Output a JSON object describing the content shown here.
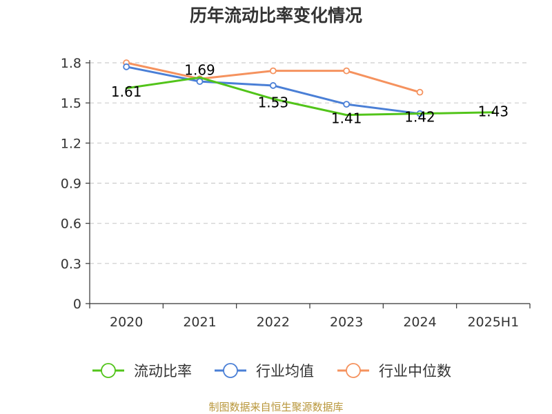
{
  "chart_data": {
    "type": "line",
    "title": "历年流动比率变化情况",
    "categories": [
      "2020",
      "2021",
      "2022",
      "2023",
      "2024",
      "2025H1"
    ],
    "ylim": [
      0,
      1.8
    ],
    "yticks": [
      "0",
      "0.3",
      "0.6",
      "0.9",
      "1.2",
      "1.5",
      "1.8"
    ],
    "grid": true,
    "legend_position": "bottom",
    "series": [
      {
        "name": "流动比率",
        "color": "#52c41a",
        "values": [
          1.61,
          1.69,
          1.53,
          1.41,
          1.42,
          1.43
        ],
        "labels": [
          "1.61",
          "1.69",
          "1.53",
          "1.41",
          "1.42",
          "1.43"
        ],
        "markers": false
      },
      {
        "name": "行业均值",
        "color": "#4a7fd6",
        "values": [
          1.77,
          1.66,
          1.63,
          1.49,
          1.42,
          null
        ],
        "markers": true
      },
      {
        "name": "行业中位数",
        "color": "#f5925e",
        "values": [
          1.8,
          1.68,
          1.74,
          1.74,
          1.58,
          null
        ],
        "markers": true
      }
    ]
  },
  "source_text": "制图数据来自恒生聚源数据库"
}
